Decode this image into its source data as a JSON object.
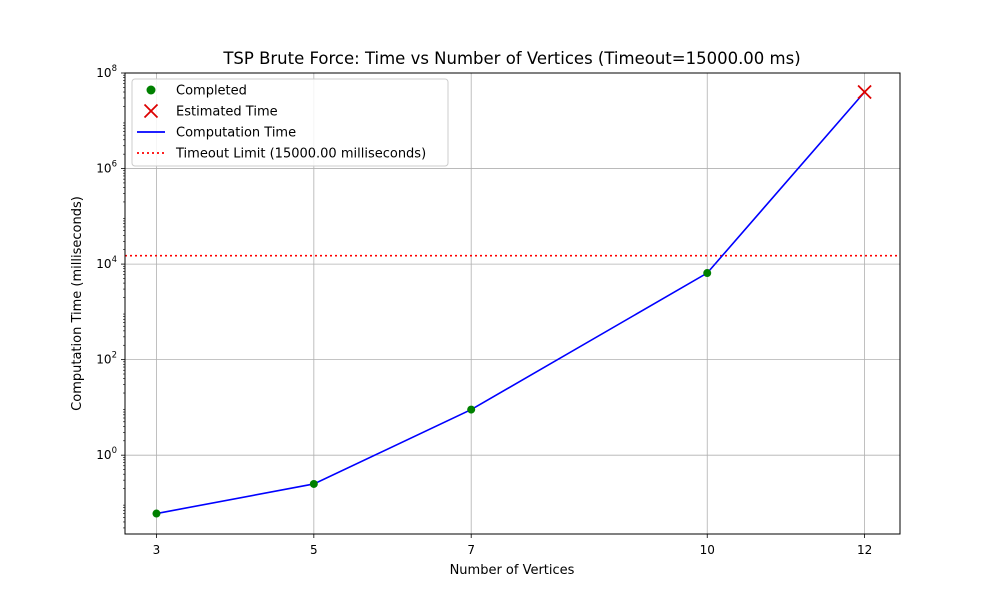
{
  "chart_data": {
    "type": "line",
    "title": "TSP Brute Force: Time vs Number of Vertices (Timeout=15000.00 ms)",
    "xlabel": "Number of Vertices",
    "ylabel": "Computation Time (milliseconds)",
    "y_scale": "log",
    "xlim": [
      2.6,
      12.45
    ],
    "ylim_log10": [
      -1.65,
      8.0
    ],
    "x_ticks": [
      3,
      5,
      7,
      10,
      12
    ],
    "y_ticks": [
      {
        "value": 1,
        "base": "10",
        "exp": "0"
      },
      {
        "value": 100,
        "base": "10",
        "exp": "2"
      },
      {
        "value": 10000,
        "base": "10",
        "exp": "4"
      },
      {
        "value": 1000000,
        "base": "10",
        "exp": "6"
      },
      {
        "value": 100000000,
        "base": "10",
        "exp": "8"
      }
    ],
    "grid": true,
    "legend_position": "upper-left",
    "legend": [
      {
        "label": "Completed",
        "marker": "dot",
        "color": "#008000"
      },
      {
        "label": "Estimated Time",
        "marker": "x",
        "color": "#dd0000"
      },
      {
        "label": "Computation Time",
        "marker": "line",
        "color": "#0000ff"
      },
      {
        "label": "Timeout Limit (15000.00 milliseconds)",
        "marker": "dotted",
        "color": "#ff0000"
      }
    ],
    "series": [
      {
        "name": "Completed",
        "kind": "scatter",
        "color": "#008000",
        "x": [
          3,
          5,
          7,
          10
        ],
        "y": [
          0.06,
          0.25,
          9,
          6500
        ]
      },
      {
        "name": "Estimated Time",
        "kind": "scatter-x",
        "color": "#dd0000",
        "x": [
          12
        ],
        "y": [
          40000000
        ]
      },
      {
        "name": "Computation Time",
        "kind": "line",
        "color": "#0000ff",
        "x": [
          3,
          5,
          7,
          10,
          12
        ],
        "y": [
          0.06,
          0.25,
          9,
          6500,
          40000000
        ]
      }
    ],
    "timeout_ms": 15000,
    "timeout_color": "#ff0000"
  }
}
